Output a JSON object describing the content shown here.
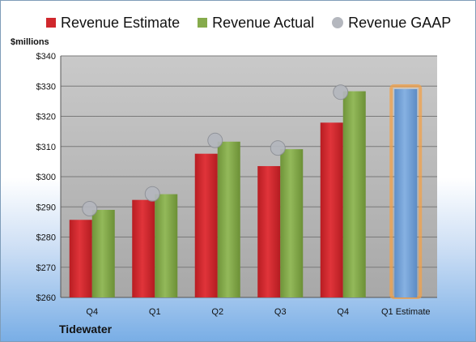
{
  "chart_data": {
    "type": "bar",
    "categories": [
      "Q4",
      "Q1",
      "Q2",
      "Q3",
      "Q4",
      "Q1 Estimate"
    ],
    "series": [
      {
        "name": "Revenue Estimate",
        "values": [
          285.7,
          292.3,
          307.6,
          303.5,
          317.9,
          null
        ],
        "color": "#d0282d"
      },
      {
        "name": "Revenue Actual",
        "values": [
          289.0,
          294.2,
          311.6,
          309.1,
          328.3,
          329.0
        ],
        "color": "#86ab4c"
      },
      {
        "name": "Revenue GAAP",
        "values": [
          289.4,
          294.3,
          312.0,
          309.5,
          328.0,
          null
        ],
        "color": "#b4b7be"
      }
    ],
    "highlight_color": "#7aa7d9",
    "ylabel": "$millions",
    "ylim": [
      260,
      340
    ],
    "yticks": [
      "$260",
      "$270",
      "$280",
      "$290",
      "$300",
      "$310",
      "$320",
      "$330",
      "$340"
    ],
    "grid": true,
    "legend_position": "top"
  },
  "brand": "Tidewater"
}
